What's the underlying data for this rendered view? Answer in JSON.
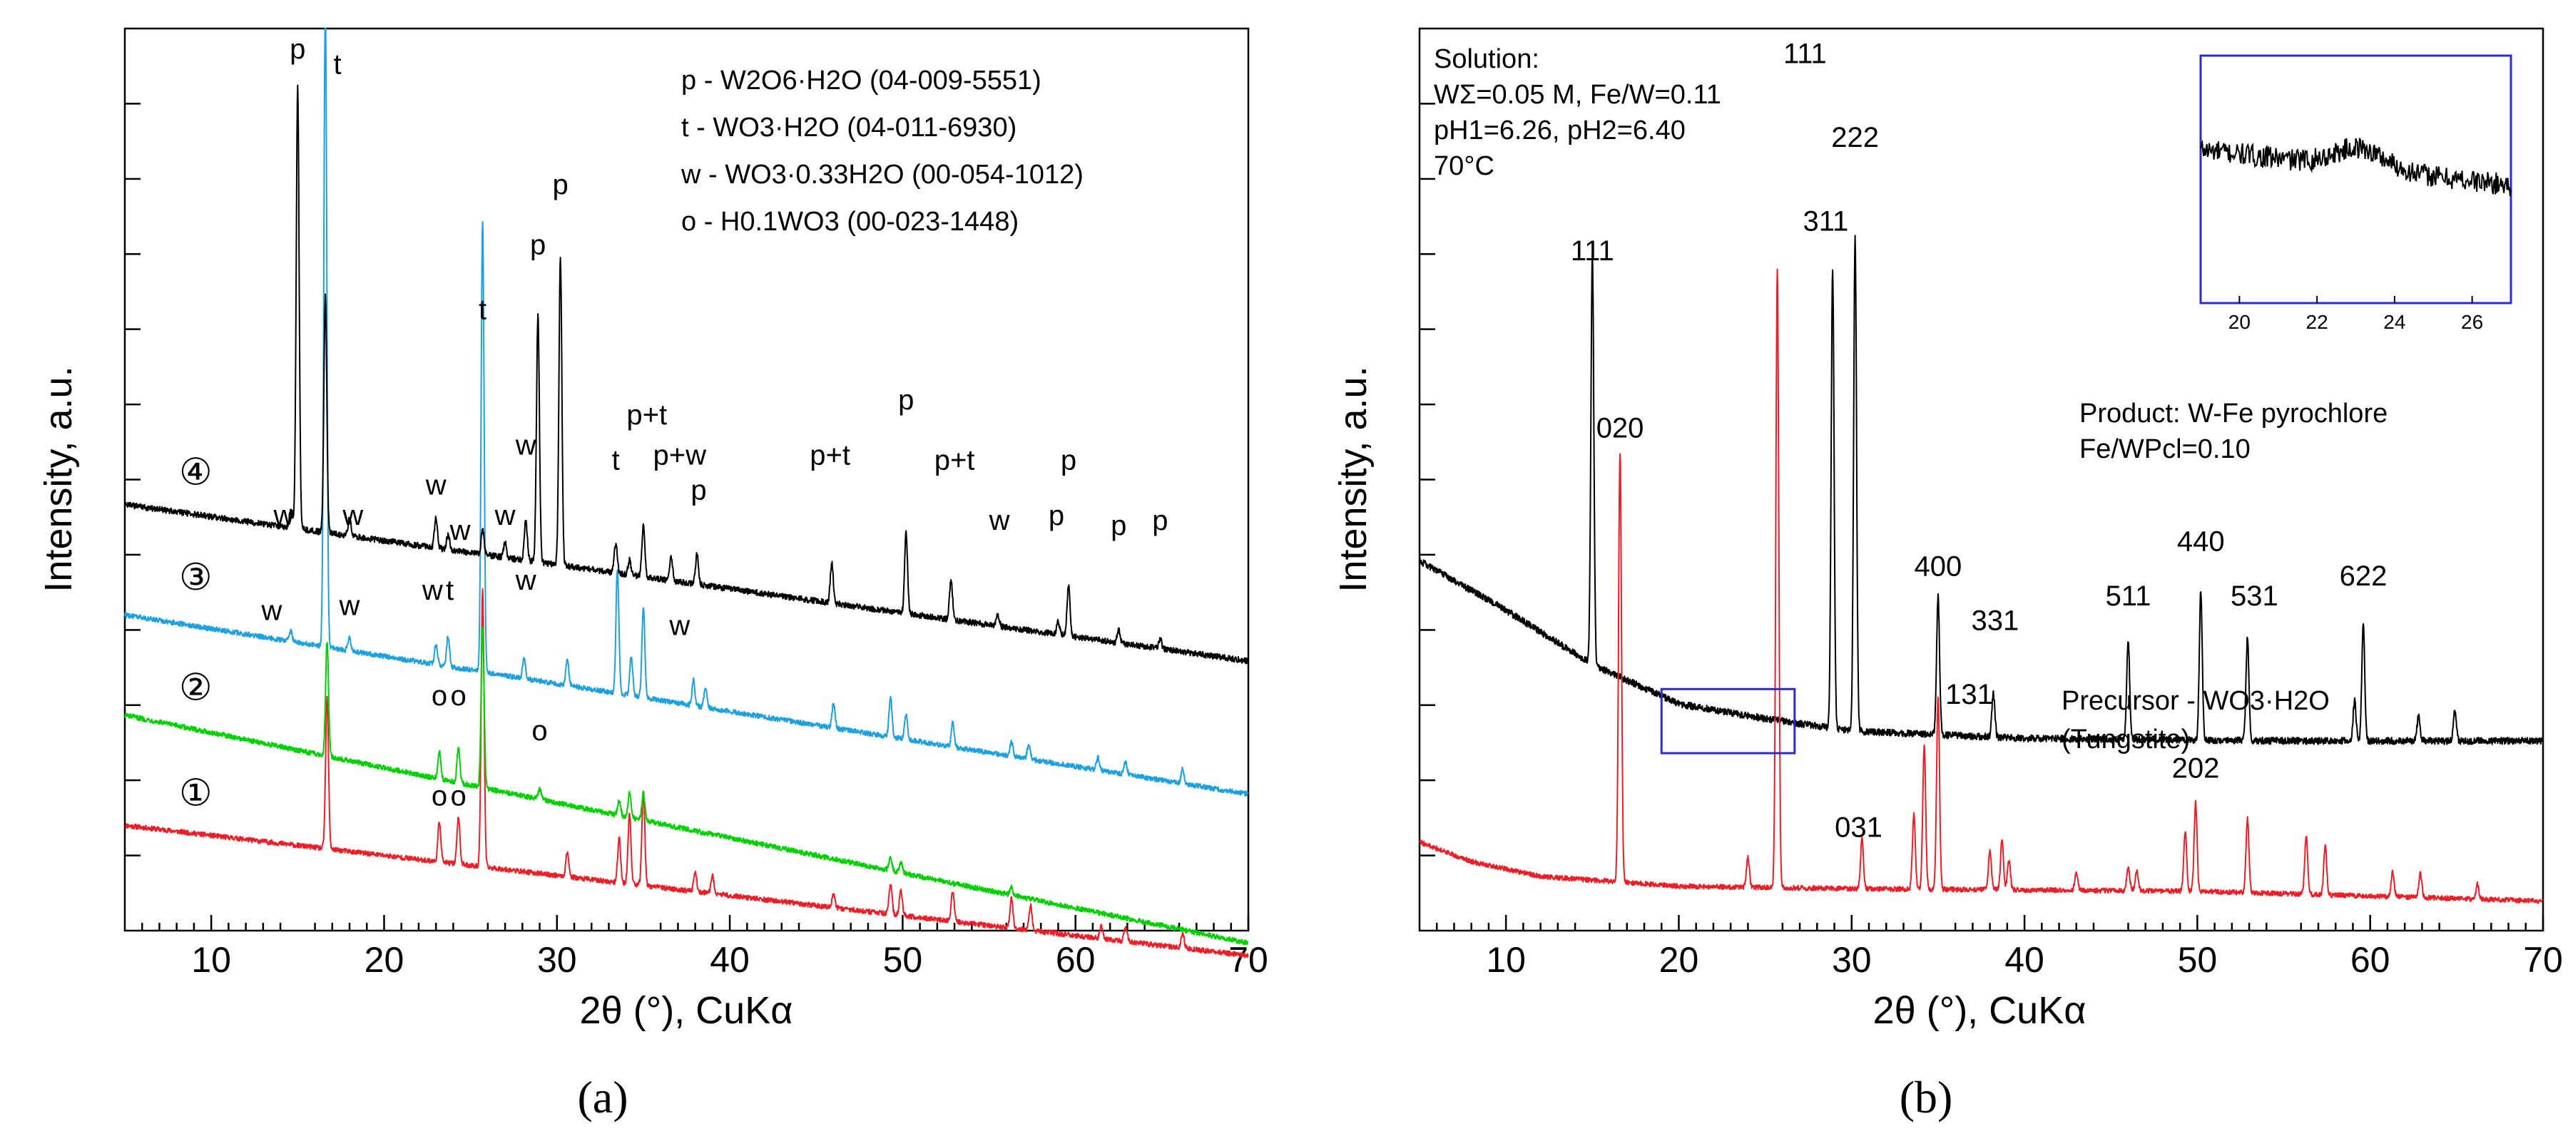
{
  "chart_data": [
    {
      "id": "a",
      "type": "line",
      "panel_label": "(a)",
      "xlabel": "2θ (°), CuKα",
      "ylabel": "Intensity, a.u.",
      "xlim": [
        5,
        70
      ],
      "xticks": [
        10,
        20,
        30,
        40,
        50,
        60,
        70
      ],
      "legend": [
        "p - W2O6·H2O (04-009-5551)",
        "t  - WO3·H2O (04-011-6930)",
        "w - WO3·0.33H2O (00-054-1012)",
        "o - H0.1WO3 (00-023-1448)"
      ],
      "series": [
        {
          "name": "1",
          "color": "#ee1c25",
          "baseline": 2.1,
          "slope": -0.004,
          "noise": 0.05,
          "peaks": [
            [
              16.7,
              3.0
            ],
            [
              23.2,
              0.8
            ],
            [
              24.3,
              0.95
            ],
            [
              25.7,
              5.5
            ],
            [
              30.6,
              0.5
            ],
            [
              33.6,
              0.9
            ],
            [
              34.2,
              1.4
            ],
            [
              35.0,
              1.9
            ],
            [
              38.0,
              0.4
            ],
            [
              39.0,
              0.35
            ],
            [
              46.0,
              0.25
            ],
            [
              49.3,
              0.6
            ],
            [
              49.9,
              0.5
            ],
            [
              52.9,
              0.6
            ],
            [
              56.3,
              0.6
            ],
            [
              57.4,
              0.5
            ],
            [
              61.5,
              0.25
            ],
            [
              62.9,
              0.3
            ],
            [
              66.2,
              0.3
            ]
          ]
        },
        {
          "name": "2",
          "color": "#00d200",
          "baseline": 4.3,
          "slope": -0.007,
          "noise": 0.05,
          "peaks": [
            [
              16.7,
              2.3
            ],
            [
              23.2,
              0.55
            ],
            [
              24.3,
              0.7
            ],
            [
              25.7,
              3.2
            ],
            [
              29.0,
              0.2
            ],
            [
              33.6,
              0.3
            ],
            [
              34.2,
              0.5
            ],
            [
              35.0,
              0.55
            ],
            [
              49.3,
              0.25
            ],
            [
              49.9,
              0.2
            ],
            [
              56.3,
              0.15
            ]
          ]
        },
        {
          "name": "3",
          "color": "#1ba1e2",
          "baseline": 6.3,
          "slope": -0.0055,
          "noise": 0.05,
          "peaks": [
            [
              14.6,
              0.2
            ],
            [
              16.6,
              13.0
            ],
            [
              18.0,
              0.25
            ],
            [
              23.0,
              0.4
            ],
            [
              23.7,
              0.6
            ],
            [
              25.7,
              9.0
            ],
            [
              28.1,
              0.4
            ],
            [
              30.6,
              0.5
            ],
            [
              33.5,
              2.5
            ],
            [
              34.3,
              0.8
            ],
            [
              35.0,
              1.8
            ],
            [
              37.9,
              0.5
            ],
            [
              38.6,
              0.4
            ],
            [
              46.0,
              0.5
            ],
            [
              49.3,
              0.8
            ],
            [
              50.2,
              0.5
            ],
            [
              52.9,
              0.5
            ],
            [
              56.3,
              0.3
            ],
            [
              57.3,
              0.3
            ],
            [
              61.3,
              0.25
            ],
            [
              62.9,
              0.25
            ],
            [
              66.2,
              0.3
            ]
          ]
        },
        {
          "name": "4",
          "color": "#000000",
          "baseline": 8.5,
          "slope": -0.0048,
          "noise": 0.06,
          "peaks": [
            [
              14.6,
              0.35
            ],
            [
              15.0,
              8.8
            ],
            [
              16.6,
              4.7
            ],
            [
              18.0,
              0.35
            ],
            [
              23.0,
              0.6
            ],
            [
              23.7,
              0.3
            ],
            [
              25.7,
              0.5
            ],
            [
              27.0,
              0.3
            ],
            [
              28.2,
              0.8
            ],
            [
              28.9,
              4.9
            ],
            [
              30.2,
              6.1
            ],
            [
              33.4,
              0.6
            ],
            [
              34.2,
              0.3
            ],
            [
              35.0,
              1.0
            ],
            [
              36.6,
              0.5
            ],
            [
              38.1,
              0.6
            ],
            [
              45.9,
              0.8
            ],
            [
              50.2,
              1.6
            ],
            [
              52.8,
              0.8
            ],
            [
              55.5,
              0.25
            ],
            [
              59.0,
              0.25
            ],
            [
              59.6,
              1.0
            ],
            [
              62.5,
              0.25
            ],
            [
              64.9,
              0.2
            ]
          ]
        }
      ],
      "sample_labels": [
        {
          "text": "①",
          "x": 9.1,
          "y": 2.5
        },
        {
          "text": "②",
          "x": 9.1,
          "y": 4.6
        },
        {
          "text": "③",
          "x": 9.1,
          "y": 6.8
        },
        {
          "text": "④",
          "x": 9.1,
          "y": 8.9
        }
      ],
      "annotations": [
        {
          "text": "p",
          "x": 15.0,
          "y": 17.4
        },
        {
          "text": "t",
          "x": 17.3,
          "y": 17.1
        },
        {
          "text": "t",
          "x": 25.7,
          "y": 12.2
        },
        {
          "text": "p",
          "x": 28.9,
          "y": 13.5
        },
        {
          "text": "p",
          "x": 30.2,
          "y": 14.7
        },
        {
          "text": "w",
          "x": 14.2,
          "y": 8.1
        },
        {
          "text": "w",
          "x": 18.2,
          "y": 8.1
        },
        {
          "text": "w",
          "x": 23.0,
          "y": 8.7
        },
        {
          "text": "w",
          "x": 24.4,
          "y": 7.8
        },
        {
          "text": "w",
          "x": 27.0,
          "y": 8.1
        },
        {
          "text": "w",
          "x": 28.2,
          "y": 9.5
        },
        {
          "text": "t",
          "x": 33.4,
          "y": 9.2
        },
        {
          "text": "p+t",
          "x": 35.2,
          "y": 10.1
        },
        {
          "text": "p+w",
          "x": 37.1,
          "y": 9.3
        },
        {
          "text": "p",
          "x": 38.2,
          "y": 8.6
        },
        {
          "text": "p+t",
          "x": 45.8,
          "y": 9.3
        },
        {
          "text": "p",
          "x": 50.2,
          "y": 10.4
        },
        {
          "text": "p+t",
          "x": 53.0,
          "y": 9.2
        },
        {
          "text": "w",
          "x": 55.6,
          "y": 8.0
        },
        {
          "text": "p",
          "x": 58.9,
          "y": 8.1
        },
        {
          "text": "p",
          "x": 59.6,
          "y": 9.2
        },
        {
          "text": "p",
          "x": 62.5,
          "y": 7.9
        },
        {
          "text": "p",
          "x": 64.9,
          "y": 8.0
        },
        {
          "text": "w",
          "x": 13.5,
          "y": 6.2
        },
        {
          "text": "w",
          "x": 18.0,
          "y": 6.3
        },
        {
          "text": "w",
          "x": 22.8,
          "y": 6.6
        },
        {
          "text": "t",
          "x": 23.8,
          "y": 6.6
        },
        {
          "text": "w",
          "x": 28.2,
          "y": 6.8
        },
        {
          "text": "w",
          "x": 37.1,
          "y": 5.9
        },
        {
          "text": "o",
          "x": 23.2,
          "y": 4.5
        },
        {
          "text": "o",
          "x": 24.3,
          "y": 4.5
        },
        {
          "text": "o",
          "x": 29.0,
          "y": 3.8
        },
        {
          "text": "o",
          "x": 23.2,
          "y": 2.5
        },
        {
          "text": "o",
          "x": 24.3,
          "y": 2.5
        }
      ]
    },
    {
      "id": "b",
      "type": "line",
      "panel_label": "(b)",
      "xlabel": "2θ (°), CuKα",
      "ylabel": "Intensity, a.u.",
      "xlim": [
        5,
        70
      ],
      "xticks": [
        10,
        20,
        30,
        40,
        50,
        60,
        70
      ],
      "solution_info": [
        "Solution:",
        "WΣ=0.05 M, Fe/W=0.11",
        "pH1=6.26, pH2=6.40",
        "70°C"
      ],
      "product_info": [
        "Product:  W-Fe pyrochlore",
        "Fe/WPcl=0.10"
      ],
      "precursor_info": [
        "Precursor - WO3·H2O",
        "(Tungstite)"
      ],
      "series": [
        {
          "name": "W-Fe pyrochlore product",
          "color": "#000000",
          "baseline_points": [
            [
              5,
              7.2
            ],
            [
              10,
              6.2
            ],
            [
              15,
              5.1
            ],
            [
              20,
              4.3
            ],
            [
              25,
              4.0
            ],
            [
              30,
              3.75
            ],
            [
              40,
              3.6
            ],
            [
              55,
              3.55
            ],
            [
              70,
              3.55
            ]
          ],
          "noise": 0.07,
          "peaks": [
            [
              15.0,
              8.3
            ],
            [
              28.9,
              9.3
            ],
            [
              30.2,
              10.0
            ],
            [
              35.0,
              2.8
            ],
            [
              38.2,
              0.9
            ],
            [
              46.0,
              2.0
            ],
            [
              50.2,
              3.0
            ],
            [
              52.9,
              2.1
            ],
            [
              59.1,
              0.8
            ],
            [
              59.6,
              2.4
            ],
            [
              62.8,
              0.5
            ],
            [
              64.9,
              0.6
            ]
          ]
        },
        {
          "name": "Precursor - WO3·H2O (Tungstite)",
          "color": "#ee1c25",
          "baseline_points": [
            [
              5,
              1.5
            ],
            [
              8,
              1.1
            ],
            [
              12,
              0.8
            ],
            [
              20,
              0.6
            ],
            [
              30,
              0.55
            ],
            [
              50,
              0.5
            ],
            [
              70,
              0.3
            ]
          ],
          "noise": 0.05,
          "peaks": [
            [
              16.6,
              8.7
            ],
            [
              25.7,
              12.5
            ],
            [
              24.0,
              0.6
            ],
            [
              30.6,
              1.0
            ],
            [
              33.6,
              1.5
            ],
            [
              34.2,
              2.9
            ],
            [
              35.0,
              3.9
            ],
            [
              38.0,
              0.8
            ],
            [
              38.7,
              1.0
            ],
            [
              39.1,
              0.6
            ],
            [
              43.0,
              0.35
            ],
            [
              46.0,
              0.5
            ],
            [
              46.5,
              0.4
            ],
            [
              49.3,
              1.2
            ],
            [
              49.9,
              1.8
            ],
            [
              52.9,
              1.5
            ],
            [
              56.3,
              1.2
            ],
            [
              57.4,
              1.0
            ],
            [
              61.3,
              0.5
            ],
            [
              62.9,
              0.5
            ],
            [
              66.2,
              0.3
            ]
          ]
        }
      ],
      "peak_labels": [
        {
          "text": "111",
          "x": 15.0,
          "y": 13.3,
          "color": "#000000"
        },
        {
          "text": "311",
          "x": 28.5,
          "y": 13.9,
          "color": "#000000"
        },
        {
          "text": "222",
          "x": 30.2,
          "y": 15.6,
          "color": "#000000"
        },
        {
          "text": "400",
          "x": 35.0,
          "y": 6.9,
          "color": "#000000"
        },
        {
          "text": "331",
          "x": 38.3,
          "y": 5.8,
          "color": "#000000"
        },
        {
          "text": "511",
          "x": 46.0,
          "y": 6.3,
          "color": "#000000"
        },
        {
          "text": "440",
          "x": 50.2,
          "y": 7.4,
          "color": "#000000"
        },
        {
          "text": "531",
          "x": 53.3,
          "y": 6.3,
          "color": "#000000"
        },
        {
          "text": "622",
          "x": 59.6,
          "y": 6.7,
          "color": "#000000"
        },
        {
          "text": "111",
          "x": 27.3,
          "y": 17.3,
          "color": "#ee1c25"
        },
        {
          "text": "020",
          "x": 16.6,
          "y": 9.7,
          "color": "#ee1c25"
        },
        {
          "text": "131",
          "x": 36.8,
          "y": 4.3,
          "color": "#ee1c25"
        },
        {
          "text": "031",
          "x": 30.4,
          "y": 1.6,
          "color": "#ee1c25"
        },
        {
          "text": "202",
          "x": 49.9,
          "y": 2.8,
          "color": "#ee1c25"
        }
      ],
      "highlight_box": {
        "x": [
          19,
          26.7
        ],
        "y": [
          3.3,
          4.6
        ]
      },
      "inset": {
        "type": "line",
        "color": "#000000",
        "xlim": [
          19,
          27
        ],
        "xticks": [
          20,
          22,
          24,
          26
        ],
        "description": "zoom of precursor-free background region, broad hump near 23 degrees"
      }
    }
  ]
}
